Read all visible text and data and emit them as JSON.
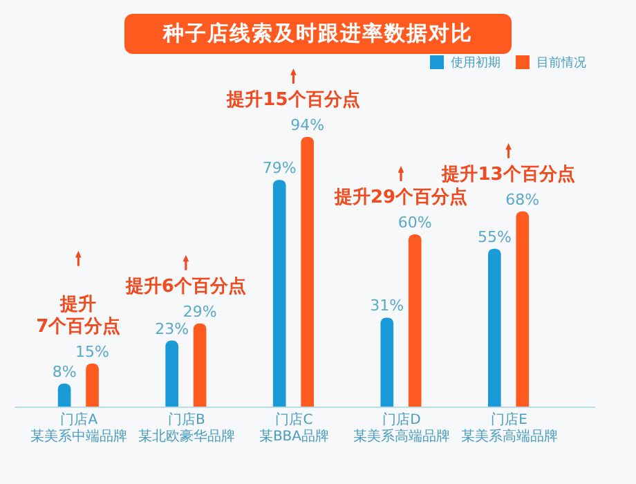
{
  "chart_data": {
    "type": "bar",
    "title": "种子店线索及时跟进率数据对比",
    "categories": [
      "门店A\n某美系中端品牌",
      "门店B\n某北欧豪华品牌",
      "门店C\n某BBA品牌",
      "门店D\n某美系高端品牌",
      "门店E\n某美系高端品牌"
    ],
    "series": [
      {
        "name": "使用初期",
        "color": "#1a9ad6",
        "values": [
          8,
          23,
          79,
          31,
          55
        ],
        "value_labels": [
          "8%",
          "23%",
          "79%",
          "31%",
          "55%"
        ]
      },
      {
        "name": "目前情况",
        "color": "#ff5a1f",
        "values": [
          15,
          29,
          94,
          60,
          68
        ],
        "value_labels": [
          "15%",
          "29%",
          "94%",
          "60%",
          "68%"
        ]
      }
    ],
    "legend": "top right",
    "annotations": [
      "提升\n7个百分点",
      "提升6个百分点",
      "提升15个百分点",
      "提升29个百分点",
      "提升13个百分点"
    ]
  }
}
